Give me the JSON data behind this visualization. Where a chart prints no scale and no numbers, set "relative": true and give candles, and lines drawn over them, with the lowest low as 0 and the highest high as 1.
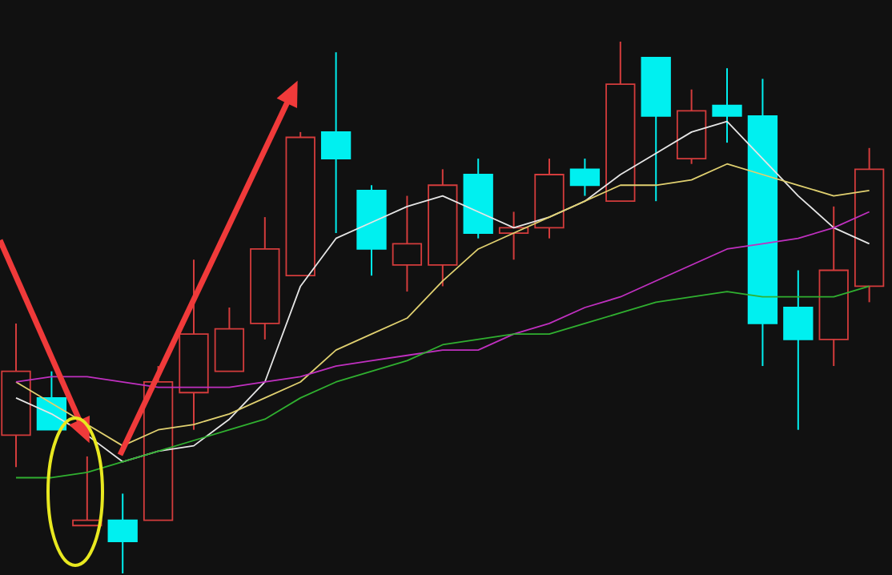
{
  "chart_data": {
    "type": "candlestick",
    "relative": true,
    "categories": [
      null,
      null,
      null,
      null,
      null,
      null,
      null,
      null,
      null,
      null,
      null,
      null,
      null,
      null,
      null,
      null,
      null,
      null,
      null,
      null,
      null,
      null,
      null,
      null,
      null
    ],
    "ohlc": [
      [
        0.26,
        0.47,
        0.2,
        0.38
      ],
      [
        0.33,
        0.38,
        0.27,
        0.27
      ],
      [
        0.09,
        0.22,
        0.09,
        0.1
      ],
      [
        0.1,
        0.15,
        0.0,
        0.06
      ],
      [
        0.1,
        0.39,
        0.1,
        0.36
      ],
      [
        0.34,
        0.59,
        0.27,
        0.45
      ],
      [
        0.38,
        0.5,
        0.38,
        0.46
      ],
      [
        0.47,
        0.67,
        0.44,
        0.61
      ],
      [
        0.56,
        0.83,
        0.56,
        0.82
      ],
      [
        0.83,
        0.98,
        0.64,
        0.78
      ],
      [
        0.72,
        0.73,
        0.56,
        0.61
      ],
      [
        0.58,
        0.71,
        0.53,
        0.62
      ],
      [
        0.58,
        0.76,
        0.54,
        0.73
      ],
      [
        0.75,
        0.78,
        0.63,
        0.64
      ],
      [
        0.64,
        0.68,
        0.59,
        0.65
      ],
      [
        0.65,
        0.78,
        0.63,
        0.75
      ],
      [
        0.76,
        0.78,
        0.71,
        0.73
      ],
      [
        0.7,
        1.0,
        0.7,
        0.92
      ],
      [
        0.97,
        0.97,
        0.7,
        0.86
      ],
      [
        0.78,
        0.91,
        0.77,
        0.87
      ],
      [
        0.88,
        0.95,
        0.81,
        0.86
      ],
      [
        0.86,
        0.93,
        0.39,
        0.47
      ],
      [
        0.5,
        0.57,
        0.27,
        0.44
      ],
      [
        0.44,
        0.69,
        0.39,
        0.57
      ],
      [
        0.54,
        0.8,
        0.51,
        0.76
      ]
    ],
    "colors": [
      "#d43c3c",
      "#00f0f0",
      "#d43c3c",
      "#00f0f0",
      "#d43c3c",
      "#d43c3c",
      "#d43c3c",
      "#d43c3c",
      "#d43c3c",
      "#00f0f0",
      "#00f0f0",
      "#d43c3c",
      "#d43c3c",
      "#00f0f0",
      "#d43c3c",
      "#d43c3c",
      "#00f0f0",
      "#d43c3c",
      "#00f0f0",
      "#d43c3c",
      "#00f0f0",
      "#00f0f0",
      "#00f0f0",
      "#d43c3c",
      "#d43c3c"
    ],
    "series": [
      {
        "type": "line",
        "color": "#e6e6e6",
        "values": [
          0.33,
          0.3,
          0.26,
          0.21,
          0.23,
          0.24,
          0.29,
          0.36,
          0.54,
          0.63,
          0.66,
          0.69,
          0.71,
          0.68,
          0.65,
          0.67,
          0.7,
          0.75,
          0.79,
          0.83,
          0.85,
          0.78,
          0.71,
          0.65,
          0.62
        ]
      },
      {
        "type": "line",
        "color": "#e0d070",
        "values": [
          0.36,
          0.32,
          0.28,
          0.24,
          0.27,
          0.28,
          0.3,
          0.33,
          0.36,
          0.42,
          0.45,
          0.48,
          0.55,
          0.61,
          0.64,
          0.67,
          0.7,
          0.73,
          0.73,
          0.74,
          0.77,
          0.75,
          0.73,
          0.71,
          0.72
        ]
      },
      {
        "type": "line",
        "color": "#c030c0",
        "values": [
          0.36,
          0.37,
          0.37,
          0.36,
          0.35,
          0.35,
          0.35,
          0.36,
          0.37,
          0.39,
          0.4,
          0.41,
          0.42,
          0.42,
          0.45,
          0.47,
          0.5,
          0.52,
          0.55,
          0.58,
          0.61,
          0.62,
          0.63,
          0.65,
          0.68
        ]
      },
      {
        "type": "line",
        "color": "#30b030",
        "values": [
          0.18,
          0.18,
          0.19,
          0.21,
          0.23,
          0.25,
          0.27,
          0.29,
          0.33,
          0.36,
          0.38,
          0.4,
          0.43,
          0.44,
          0.45,
          0.45,
          0.47,
          0.49,
          0.51,
          0.52,
          0.53,
          0.52,
          0.52,
          0.52,
          0.54
        ]
      }
    ]
  }
}
